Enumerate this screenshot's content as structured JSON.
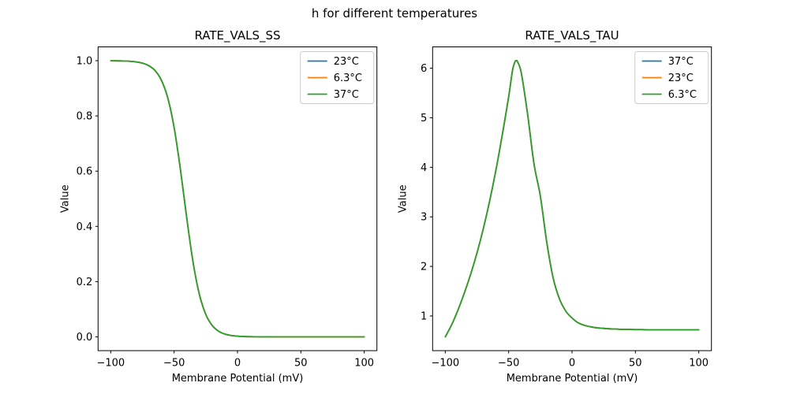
{
  "figure": {
    "suptitle": "h for different temperatures",
    "background": "#ffffff"
  },
  "colors": {
    "series_blue": "#1f77b4",
    "series_orange": "#ff7f0e",
    "series_green": "#2ca02c",
    "axis": "#000000",
    "legend_border": "#cccccc",
    "legend_fill": "#ffffff"
  },
  "chart_data": [
    {
      "type": "line",
      "title": "RATE_VALS_SS",
      "xlabel": "Membrane Potential (mV)",
      "ylabel": "Value",
      "xlim": [
        -110,
        110
      ],
      "ylim": [
        -0.05,
        1.05
      ],
      "grid": false,
      "xticks": [
        -100,
        -50,
        0,
        50,
        100
      ],
      "xtick_labels": [
        "−100",
        "−50",
        "0",
        "50",
        "100"
      ],
      "yticks": [
        0.0,
        0.2,
        0.4,
        0.6,
        0.8,
        1.0
      ],
      "ytick_labels": [
        "0.0",
        "0.2",
        "0.4",
        "0.6",
        "0.8",
        "1.0"
      ],
      "legend": {
        "position": "upper right",
        "entries": [
          {
            "label": "23°C",
            "color": "#1f77b4"
          },
          {
            "label": "6.3°C",
            "color": "#ff7f0e"
          },
          {
            "label": "37°C",
            "color": "#2ca02c"
          }
        ]
      },
      "x": [
        -100,
        -95,
        -90,
        -85,
        -80,
        -75,
        -70,
        -65,
        -60,
        -55,
        -50,
        -45,
        -40,
        -35,
        -30,
        -25,
        -20,
        -15,
        -10,
        -5,
        0,
        5,
        10,
        15,
        20,
        25,
        30,
        35,
        40,
        45,
        50,
        55,
        60,
        65,
        70,
        75,
        80,
        85,
        90,
        95,
        100
      ],
      "series": [
        {
          "name": "23°C",
          "color": "#1f77b4",
          "values": [
            0.9997,
            0.9995,
            0.999,
            0.9979,
            0.9956,
            0.9911,
            0.982,
            0.964,
            0.9289,
            0.865,
            0.7582,
            0.6055,
            0.429,
            0.2689,
            0.1526,
            0.081,
            0.0414,
            0.0207,
            0.0102,
            0.005,
            0.0025,
            0.0012,
            0.0006,
            0.0003,
            0.0001,
            0.0001,
            0,
            0,
            0,
            0,
            0,
            0,
            0,
            0,
            0,
            0,
            0,
            0,
            0,
            0,
            0
          ]
        },
        {
          "name": "6.3°C",
          "color": "#ff7f0e",
          "values": [
            0.9997,
            0.9995,
            0.999,
            0.9979,
            0.9956,
            0.9911,
            0.982,
            0.964,
            0.9289,
            0.865,
            0.7582,
            0.6055,
            0.429,
            0.2689,
            0.1526,
            0.081,
            0.0414,
            0.0207,
            0.0102,
            0.005,
            0.0025,
            0.0012,
            0.0006,
            0.0003,
            0.0001,
            0.0001,
            0,
            0,
            0,
            0,
            0,
            0,
            0,
            0,
            0,
            0,
            0,
            0,
            0,
            0,
            0
          ]
        },
        {
          "name": "37°C",
          "color": "#2ca02c",
          "values": [
            0.9997,
            0.9995,
            0.999,
            0.9979,
            0.9956,
            0.9911,
            0.982,
            0.964,
            0.9289,
            0.865,
            0.7582,
            0.6055,
            0.429,
            0.2689,
            0.1526,
            0.081,
            0.0414,
            0.0207,
            0.0102,
            0.005,
            0.0025,
            0.0012,
            0.0006,
            0.0003,
            0.0001,
            0.0001,
            0,
            0,
            0,
            0,
            0,
            0,
            0,
            0,
            0,
            0,
            0,
            0,
            0,
            0,
            0
          ]
        }
      ]
    },
    {
      "type": "line",
      "title": "RATE_VALS_TAU",
      "xlabel": "Membrane Potential (mV)",
      "ylabel": "Value",
      "xlim": [
        -110,
        110
      ],
      "ylim": [
        0.3,
        6.43
      ],
      "grid": false,
      "xticks": [
        -100,
        -50,
        0,
        50,
        100
      ],
      "xtick_labels": [
        "−100",
        "−50",
        "0",
        "50",
        "100"
      ],
      "yticks": [
        1,
        2,
        3,
        4,
        5,
        6
      ],
      "ytick_labels": [
        "1",
        "2",
        "3",
        "4",
        "5",
        "6"
      ],
      "legend": {
        "position": "upper right",
        "entries": [
          {
            "label": "37°C",
            "color": "#1f77b4"
          },
          {
            "label": "23°C",
            "color": "#ff7f0e"
          },
          {
            "label": "6.3°C",
            "color": "#2ca02c"
          }
        ]
      },
      "x": [
        -100,
        -95,
        -90,
        -85,
        -80,
        -75,
        -70,
        -65,
        -60,
        -55,
        -50,
        -47,
        -45,
        -44,
        -43,
        -40,
        -35,
        -30,
        -25,
        -20,
        -15,
        -10,
        -5,
        0,
        5,
        10,
        15,
        20,
        25,
        30,
        35,
        40,
        45,
        50,
        55,
        60,
        65,
        70,
        75,
        80,
        85,
        90,
        95,
        100
      ],
      "series": [
        {
          "name": "37°C",
          "color": "#1f77b4",
          "values": [
            0.58,
            0.82,
            1.12,
            1.46,
            1.84,
            2.27,
            2.76,
            3.32,
            3.95,
            4.66,
            5.42,
            5.95,
            6.13,
            6.15,
            6.13,
            5.9,
            5.06,
            4.07,
            3.42,
            2.5,
            1.78,
            1.35,
            1.1,
            0.96,
            0.86,
            0.81,
            0.78,
            0.76,
            0.75,
            0.74,
            0.735,
            0.73,
            0.73,
            0.725,
            0.725,
            0.72,
            0.72,
            0.72,
            0.72,
            0.72,
            0.72,
            0.72,
            0.72,
            0.72
          ]
        },
        {
          "name": "23°C",
          "color": "#ff7f0e",
          "values": [
            0.58,
            0.82,
            1.12,
            1.46,
            1.84,
            2.27,
            2.76,
            3.32,
            3.95,
            4.66,
            5.42,
            5.95,
            6.13,
            6.15,
            6.13,
            5.9,
            5.06,
            4.07,
            3.42,
            2.5,
            1.78,
            1.35,
            1.1,
            0.96,
            0.86,
            0.81,
            0.78,
            0.76,
            0.75,
            0.74,
            0.735,
            0.73,
            0.73,
            0.725,
            0.725,
            0.72,
            0.72,
            0.72,
            0.72,
            0.72,
            0.72,
            0.72,
            0.72,
            0.72
          ]
        },
        {
          "name": "6.3°C",
          "color": "#2ca02c",
          "values": [
            0.58,
            0.82,
            1.12,
            1.46,
            1.84,
            2.27,
            2.76,
            3.32,
            3.95,
            4.66,
            5.42,
            5.95,
            6.13,
            6.15,
            6.13,
            5.9,
            5.06,
            4.07,
            3.42,
            2.5,
            1.78,
            1.35,
            1.1,
            0.96,
            0.86,
            0.81,
            0.78,
            0.76,
            0.75,
            0.74,
            0.735,
            0.73,
            0.73,
            0.725,
            0.725,
            0.72,
            0.72,
            0.72,
            0.72,
            0.72,
            0.72,
            0.72,
            0.72,
            0.72
          ]
        }
      ]
    }
  ]
}
